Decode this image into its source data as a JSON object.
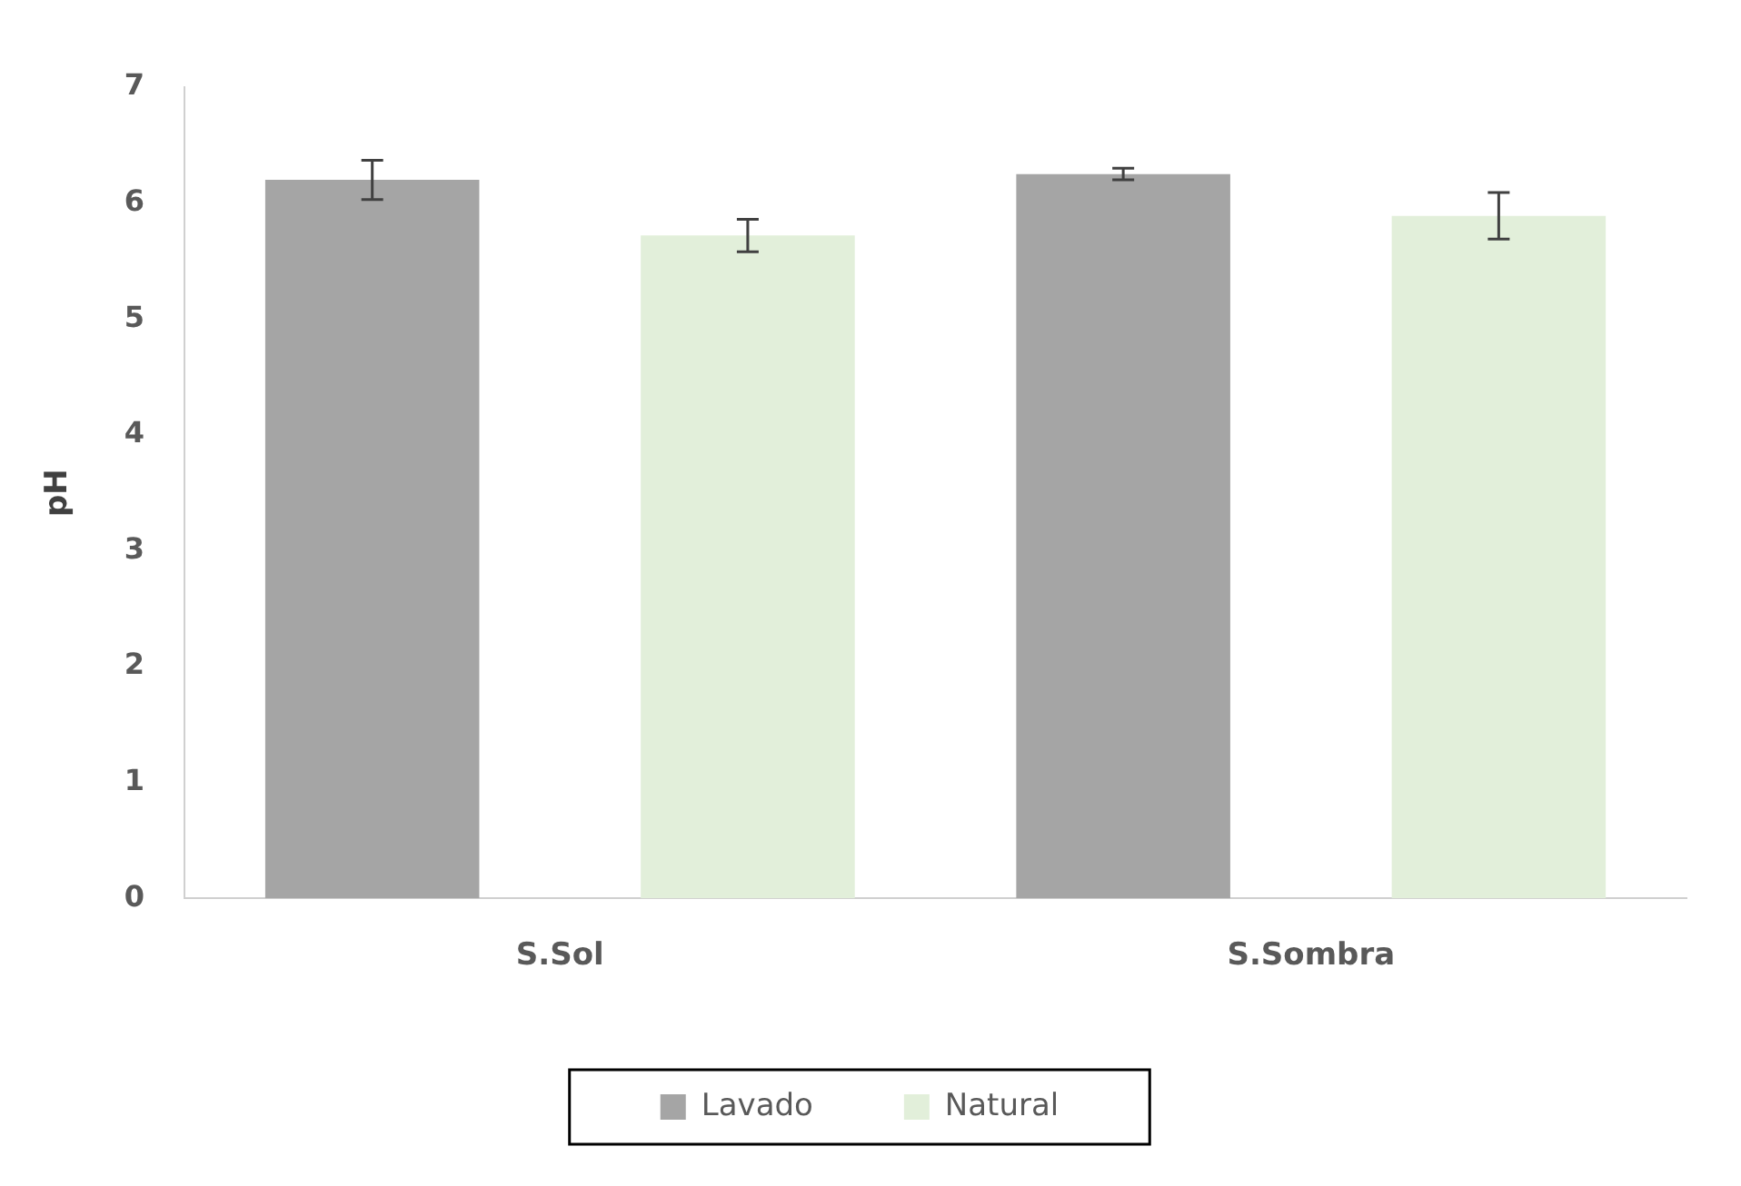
{
  "chart_data": {
    "type": "bar",
    "ylabel": "pH",
    "categories": [
      "S.Sol",
      "S.Sombra"
    ],
    "series": [
      {
        "name": "Lavado",
        "color": "#a5a5a5",
        "values": [
          6.2,
          6.25
        ],
        "errors": [
          0.17,
          0.05
        ]
      },
      {
        "name": "Natural",
        "color": "#e2efda",
        "values": [
          5.72,
          5.89
        ],
        "errors": [
          0.14,
          0.2
        ]
      }
    ],
    "ylim": [
      0,
      7
    ],
    "yticks": [
      0,
      1,
      2,
      3,
      4,
      5,
      6,
      7
    ],
    "grid": false,
    "legend": "bottom"
  }
}
